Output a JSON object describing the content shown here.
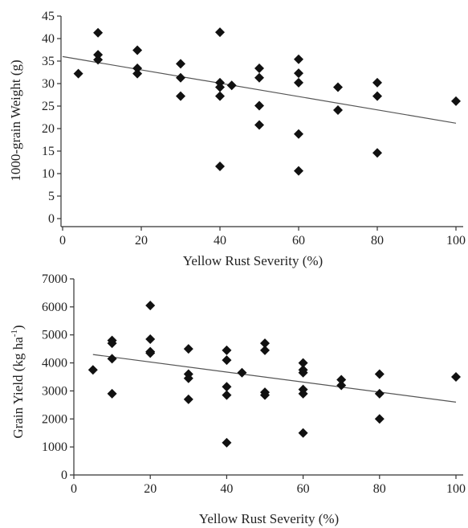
{
  "chart_data": [
    {
      "type": "scatter",
      "xlabel": "Yellow Rust Severity (%)",
      "ylabel": "1000-grain Weight (g)",
      "xlim": [
        0,
        100
      ],
      "ylim": [
        0,
        45
      ],
      "xticks": [
        0,
        20,
        40,
        60,
        80,
        100
      ],
      "yticks": [
        0,
        5,
        10,
        15,
        20,
        25,
        30,
        35,
        40,
        45
      ],
      "points": [
        [
          4,
          32.2
        ],
        [
          9,
          41.3
        ],
        [
          9,
          36.4
        ],
        [
          9,
          35.3
        ],
        [
          19,
          37.4
        ],
        [
          19,
          33.4
        ],
        [
          19,
          32.2
        ],
        [
          30,
          34.4
        ],
        [
          30,
          31.3
        ],
        [
          30,
          27.2
        ],
        [
          40,
          41.4
        ],
        [
          40,
          30.2
        ],
        [
          40,
          29.2
        ],
        [
          40,
          27.2
        ],
        [
          40,
          11.6
        ],
        [
          43,
          29.6
        ],
        [
          50,
          33.4
        ],
        [
          50,
          31.3
        ],
        [
          50,
          25.1
        ],
        [
          50,
          20.8
        ],
        [
          60,
          35.4
        ],
        [
          60,
          32.3
        ],
        [
          60,
          30.2
        ],
        [
          60,
          18.8
        ],
        [
          60,
          10.6
        ],
        [
          70,
          29.2
        ],
        [
          70,
          24.1
        ],
        [
          80,
          30.2
        ],
        [
          80,
          27.2
        ],
        [
          80,
          14.6
        ],
        [
          100,
          26.1
        ]
      ],
      "trendline": [
        [
          0,
          36.0
        ],
        [
          100,
          21.2
        ]
      ],
      "grid": false,
      "legend": "none"
    },
    {
      "type": "scatter",
      "xlabel": "Yellow Rust Severity (%)",
      "ylabel_main": "Grain Yield (kg ha",
      "ylabel_sup": "-1",
      "ylabel_tail": ")",
      "xlim": [
        0,
        100
      ],
      "ylim": [
        0,
        7000
      ],
      "xticks": [
        0,
        20,
        40,
        60,
        80,
        100
      ],
      "yticks": [
        0,
        1000,
        2000,
        3000,
        4000,
        5000,
        6000,
        7000
      ],
      "points": [
        [
          5,
          3750
        ],
        [
          10,
          4800
        ],
        [
          10,
          4700
        ],
        [
          10,
          4150
        ],
        [
          10,
          2900
        ],
        [
          20,
          6050
        ],
        [
          20,
          4850
        ],
        [
          20,
          4400
        ],
        [
          20,
          4350
        ],
        [
          30,
          4500
        ],
        [
          30,
          3600
        ],
        [
          30,
          3450
        ],
        [
          30,
          2700
        ],
        [
          40,
          4450
        ],
        [
          40,
          4100
        ],
        [
          40,
          3150
        ],
        [
          40,
          2850
        ],
        [
          40,
          1150
        ],
        [
          44,
          3650
        ],
        [
          50,
          4700
        ],
        [
          50,
          4450
        ],
        [
          50,
          2950
        ],
        [
          50,
          2850
        ],
        [
          60,
          4000
        ],
        [
          60,
          3750
        ],
        [
          60,
          3650
        ],
        [
          60,
          3050
        ],
        [
          60,
          2900
        ],
        [
          60,
          1500
        ],
        [
          70,
          3400
        ],
        [
          70,
          3200
        ],
        [
          80,
          3600
        ],
        [
          80,
          2900
        ],
        [
          80,
          2000
        ],
        [
          100,
          3500
        ]
      ],
      "trendline": [
        [
          5,
          4300
        ],
        [
          100,
          2600
        ]
      ],
      "grid": false,
      "legend": "none"
    }
  ]
}
